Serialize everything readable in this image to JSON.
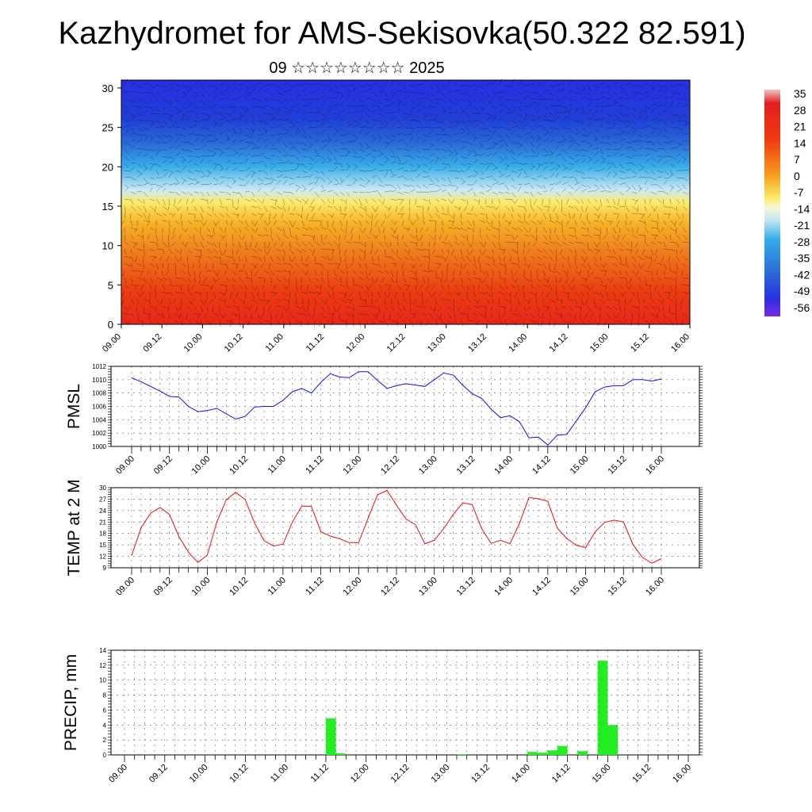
{
  "title": "Kazhydromet for AMS-Sekisovka(50.322 82.591)",
  "subtitle": "09 ☆☆☆☆☆☆☆☆ 2025",
  "time_ticks": [
    "09.00",
    "09.12",
    "10.00",
    "10.12",
    "11.00",
    "11.12",
    "12.00",
    "12.12",
    "13.00",
    "13.12",
    "14.00",
    "14.12",
    "15.00",
    "15.12",
    "16.00"
  ],
  "colorbar": {
    "labels": [
      "35",
      "28",
      "21",
      "14",
      "7",
      "0",
      "-7",
      "-14",
      "-21",
      "-28",
      "-35",
      "-42",
      "-49",
      "-56"
    ],
    "stops": [
      {
        "pos": 0.0,
        "color": "#f4c4c4"
      },
      {
        "pos": 0.06,
        "color": "#e02020"
      },
      {
        "pos": 0.22,
        "color": "#f03a10"
      },
      {
        "pos": 0.38,
        "color": "#f7a01c"
      },
      {
        "pos": 0.48,
        "color": "#fcec6a"
      },
      {
        "pos": 0.52,
        "color": "#f6f8d8"
      },
      {
        "pos": 0.58,
        "color": "#bfe4f2"
      },
      {
        "pos": 0.66,
        "color": "#32aee8"
      },
      {
        "pos": 0.8,
        "color": "#2c6ed8"
      },
      {
        "pos": 0.92,
        "color": "#2a30e0"
      },
      {
        "pos": 1.0,
        "color": "#7a2ae6"
      }
    ]
  },
  "chart_data": [
    {
      "type": "heatmap",
      "name": "vertical cross-section",
      "y_ticks": [
        "0",
        "5",
        "10",
        "15",
        "20",
        "25",
        "30"
      ],
      "ylim": [
        0,
        31
      ],
      "x": [
        "09.00",
        "16.00"
      ],
      "vertical_profile_colors": [
        {
          "level": 0,
          "color": "#e8281a"
        },
        {
          "level": 4,
          "color": "#ec3a12"
        },
        {
          "level": 9,
          "color": "#f07a1c"
        },
        {
          "level": 13,
          "color": "#f8b428"
        },
        {
          "level": 15.5,
          "color": "#fceb6e"
        },
        {
          "level": 17,
          "color": "#cfeaf4"
        },
        {
          "level": 20,
          "color": "#3aaeea"
        },
        {
          "level": 23,
          "color": "#2a6ad8"
        },
        {
          "level": 26,
          "color": "#2040d8"
        },
        {
          "level": 31,
          "color": "#2a2ee2"
        }
      ]
    },
    {
      "type": "line",
      "ylabel": "PMSL",
      "ylim": [
        1000,
        1012
      ],
      "y_ticks": [
        "1000",
        "1002",
        "1004",
        "1006",
        "1008",
        "1010",
        "1012"
      ],
      "color": "#1010e0",
      "values": [
        1010.3,
        1009.7,
        1009.0,
        1008.3,
        1007.5,
        1007.4,
        1006.0,
        1005.2,
        1005.4,
        1005.7,
        1004.9,
        1004.1,
        1004.5,
        1005.9,
        1006.0,
        1006.0,
        1006.9,
        1008.2,
        1008.7,
        1008.0,
        1009.6,
        1010.9,
        1010.4,
        1010.3,
        1011.2,
        1011.2,
        1009.9,
        1008.7,
        1009.1,
        1009.4,
        1009.2,
        1009.0,
        1010.0,
        1011.0,
        1010.7,
        1009.2,
        1007.9,
        1007.2,
        1005.6,
        1004.3,
        1004.6,
        1003.7,
        1001.3,
        1001.4,
        1000.2,
        1001.7,
        1001.8,
        1003.8,
        1005.8,
        1008.2,
        1008.9,
        1009.1,
        1009.1,
        1010.0,
        1010.0,
        1009.8,
        1010.1
      ]
    },
    {
      "type": "line",
      "ylabel": "TEMP at 2 M",
      "ylim": [
        9,
        30
      ],
      "y_ticks": [
        "9",
        "12",
        "15",
        "18",
        "21",
        "24",
        "27",
        "30"
      ],
      "color": "#e01010",
      "values": [
        12.2,
        19.5,
        23.3,
        24.8,
        23.0,
        17.2,
        13.1,
        10.4,
        12.3,
        21.0,
        26.8,
        28.8,
        26.9,
        20.7,
        16.1,
        14.7,
        15.2,
        21.0,
        25.2,
        25.1,
        18.5,
        17.3,
        16.6,
        15.6,
        15.6,
        22.0,
        28.1,
        29.3,
        25.4,
        21.8,
        20.3,
        15.3,
        16.2,
        19.3,
        23.0,
        26.0,
        25.6,
        19.3,
        15.4,
        16.2,
        15.3,
        20.6,
        27.4,
        27.1,
        26.4,
        19.4,
        16.7,
        14.9,
        14.3,
        18.4,
        20.9,
        21.5,
        21.0,
        15.1,
        11.7,
        10.2,
        11.4
      ]
    },
    {
      "type": "bar",
      "ylabel": "PRECIP, mm",
      "ylim": [
        0,
        14
      ],
      "y_ticks": [
        "0",
        "2",
        "4",
        "6",
        "8",
        "10",
        "12",
        "14"
      ],
      "color": "#22ee22",
      "values": [
        0,
        0,
        0,
        0,
        0,
        0,
        0,
        0,
        0,
        0,
        0,
        0,
        0,
        0,
        0,
        0,
        0,
        0,
        0,
        0,
        4.9,
        0.2,
        0,
        0,
        0,
        0,
        0,
        0,
        0,
        0,
        0,
        0,
        0,
        0.1,
        0,
        0,
        0,
        0,
        0,
        0,
        0.4,
        0.3,
        0.6,
        1.2,
        0,
        0.5,
        0,
        12.6,
        4.0,
        0,
        0,
        0,
        0,
        0,
        0,
        0,
        0
      ]
    }
  ]
}
